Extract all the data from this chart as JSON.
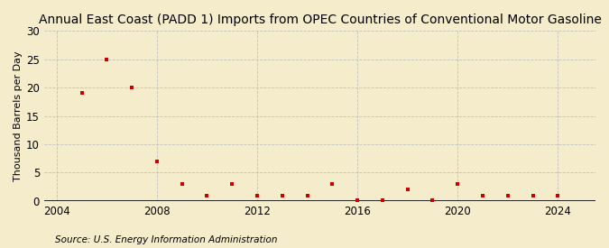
{
  "title": "Annual East Coast (PADD 1) Imports from OPEC Countries of Conventional Motor Gasoline",
  "ylabel": "Thousand Barrels per Day",
  "source": "Source: U.S. Energy Information Administration",
  "background_color": "#f5eccb",
  "marker_color": "#cc0000",
  "grid_color": "#bbbbbb",
  "years": [
    2005,
    2006,
    2007,
    2008,
    2009,
    2010,
    2011,
    2012,
    2013,
    2014,
    2015,
    2016,
    2017,
    2018,
    2019,
    2020,
    2021,
    2022,
    2023,
    2024
  ],
  "values": [
    19,
    25,
    20,
    7,
    3,
    1,
    3,
    1,
    1,
    1,
    3,
    0.2,
    0.2,
    2,
    0.2,
    3,
    1,
    1,
    1,
    1
  ],
  "ylim": [
    0,
    30
  ],
  "xlim": [
    2003.5,
    2025.5
  ],
  "yticks": [
    0,
    5,
    10,
    15,
    20,
    25,
    30
  ],
  "xticks": [
    2004,
    2008,
    2012,
    2016,
    2020,
    2024
  ],
  "title_fontsize": 10,
  "label_fontsize": 8,
  "tick_fontsize": 8.5,
  "source_fontsize": 7.5
}
